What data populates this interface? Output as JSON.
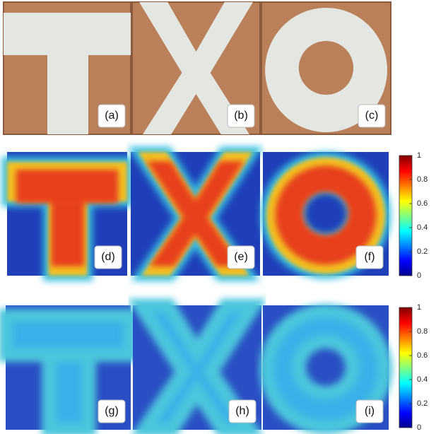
{
  "panels": [
    {
      "label": "(a)"
    },
    {
      "label": "(b)"
    },
    {
      "label": "(c)"
    },
    {
      "label": "(d)"
    },
    {
      "label": "(e)"
    },
    {
      "label": "(f)"
    },
    {
      "label": "(g)"
    },
    {
      "label": "(h)"
    },
    {
      "label": "(i)"
    }
  ],
  "colorbars": [
    {
      "lim": [
        0,
        1
      ],
      "ticks": [
        0,
        0.2,
        0.4,
        0.6,
        0.8,
        1
      ]
    },
    {
      "lim": [
        0,
        1
      ],
      "ticks": [
        0,
        0.2,
        0.4,
        0.6,
        0.8,
        1
      ]
    }
  ]
}
